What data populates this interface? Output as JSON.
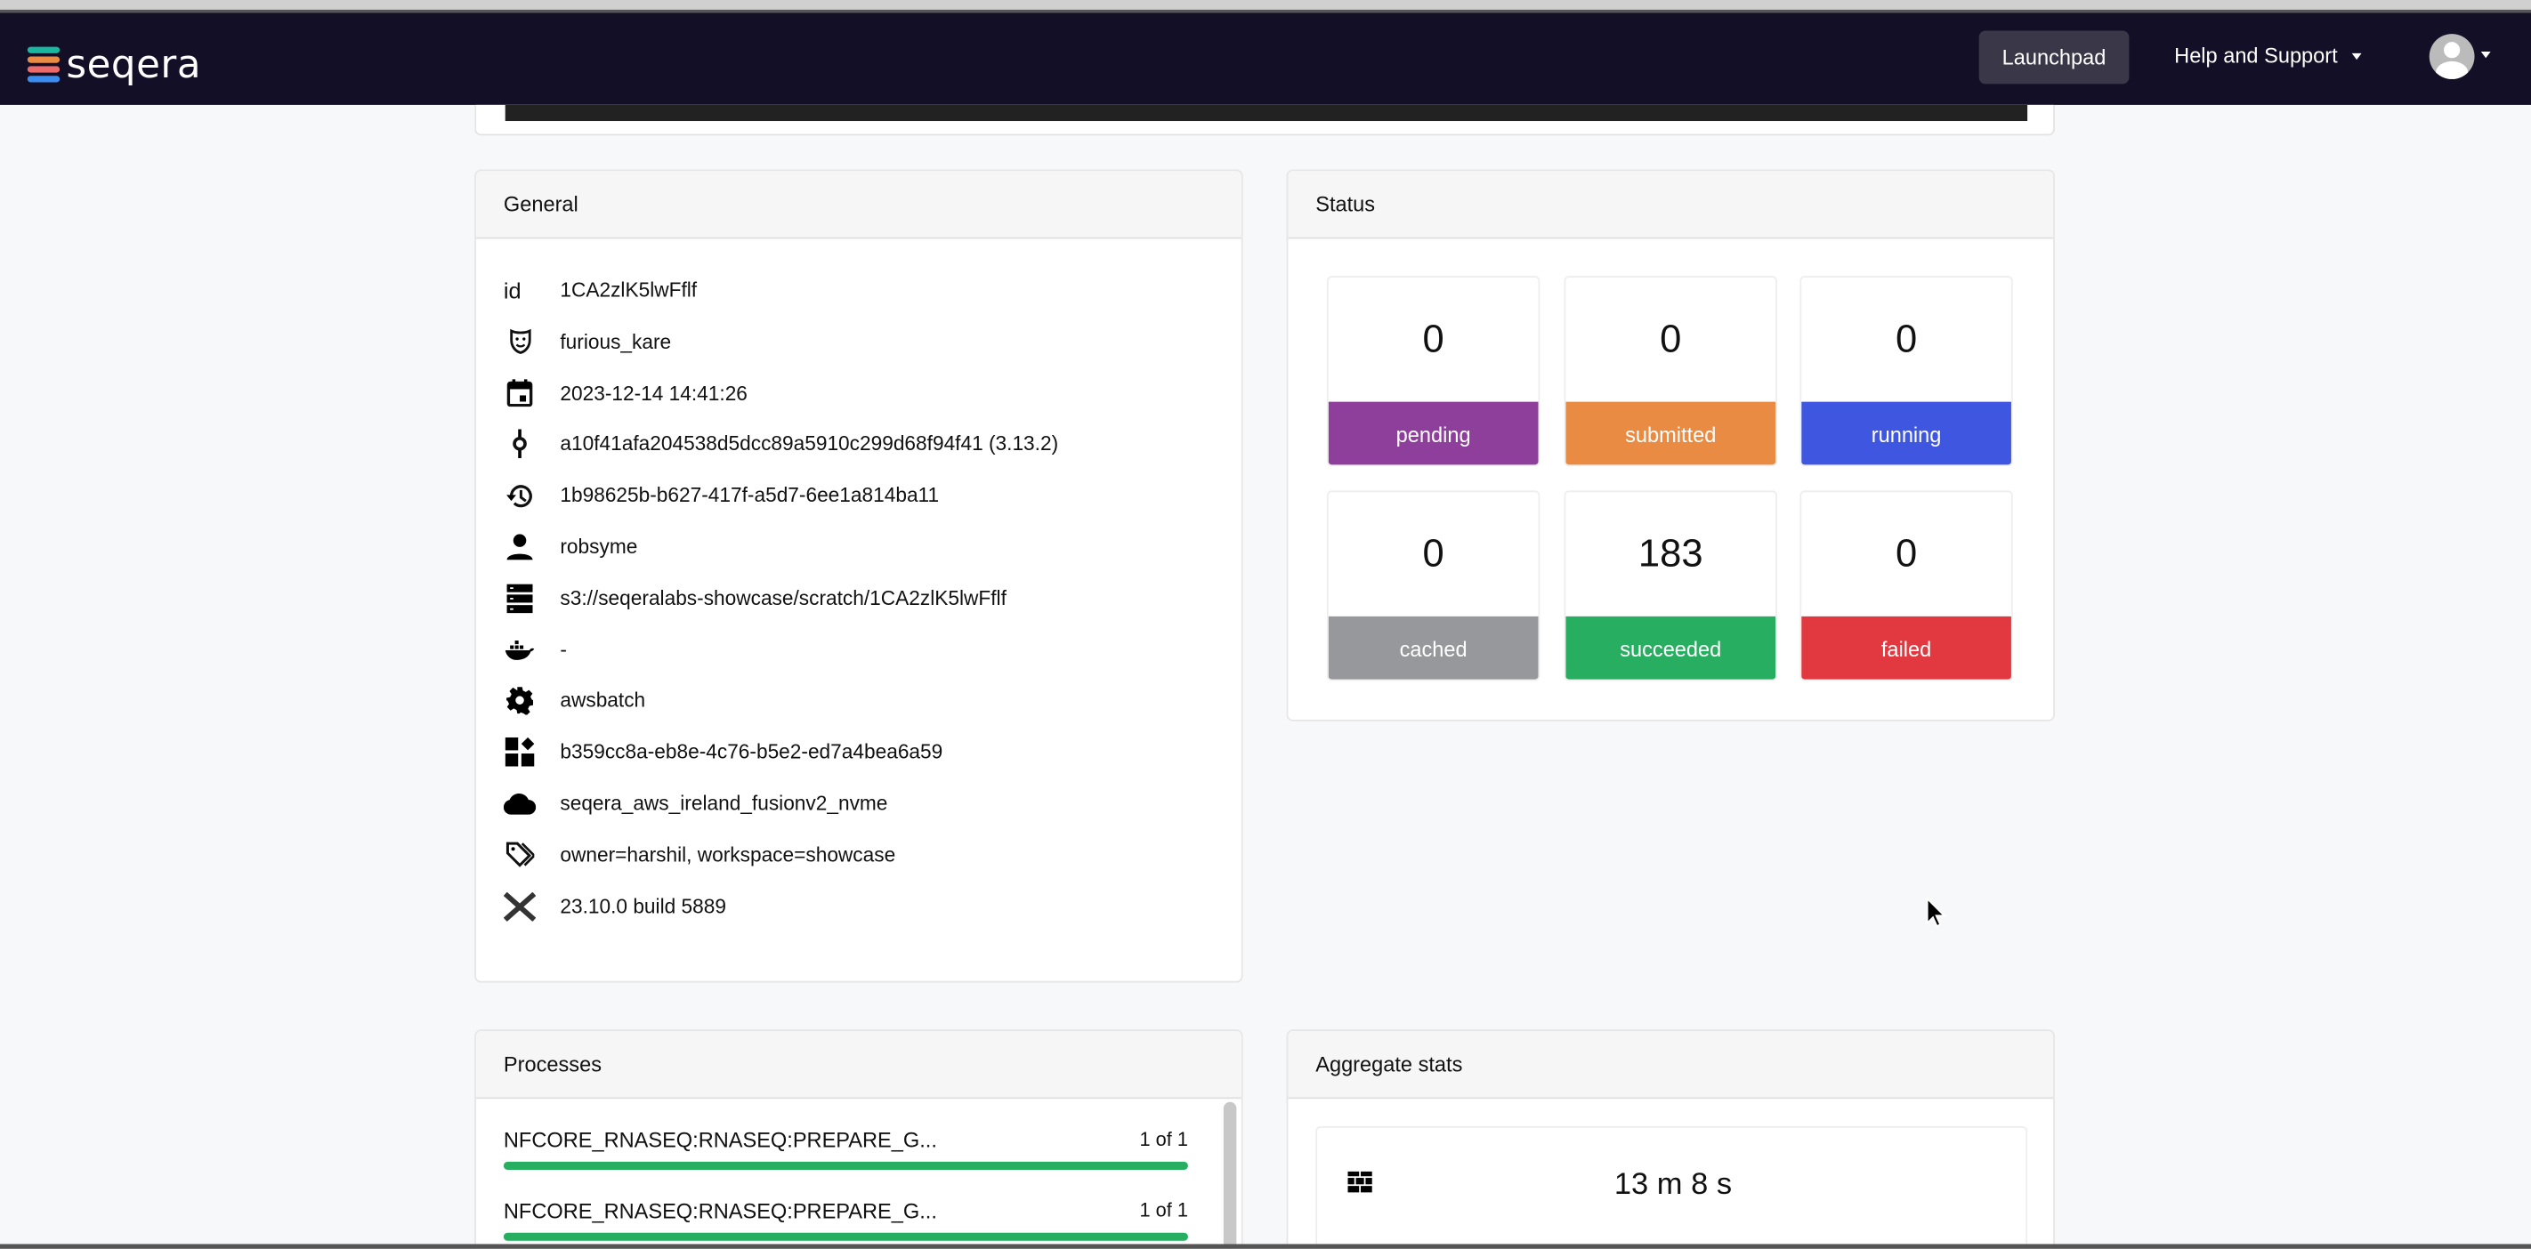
{
  "nav": {
    "brand": "seqera",
    "launchpad": "Launchpad",
    "help": "Help and Support"
  },
  "general": {
    "title": "General",
    "rows": [
      {
        "icon": "id",
        "value": "1CA2zlK5lwFflf"
      },
      {
        "icon": "mask-icon",
        "value": "furious_kare"
      },
      {
        "icon": "calendar-icon",
        "value": "2023-12-14 14:41:26"
      },
      {
        "icon": "commit-icon",
        "value": "a10f41afa204538d5dcc89a5910c299d68f94f41 (3.13.2)"
      },
      {
        "icon": "history-icon",
        "value": "1b98625b-b627-417f-a5d7-6ee1a814ba11"
      },
      {
        "icon": "user-icon",
        "value": "robsyme"
      },
      {
        "icon": "storage-icon",
        "value": "s3://seqeralabs-showcase/scratch/1CA2zlK5lwFflf"
      },
      {
        "icon": "docker-icon",
        "value": "-"
      },
      {
        "icon": "gear-icon",
        "value": "awsbatch"
      },
      {
        "icon": "widgets-icon",
        "value": "b359cc8a-eb8e-4c76-b5e2-ed7a4bea6a59"
      },
      {
        "icon": "cloud-icon",
        "value": "seqera_aws_ireland_fusionv2_nvme"
      },
      {
        "icon": "tags-icon",
        "value": "owner=harshil, workspace=showcase"
      },
      {
        "icon": "nextflow-icon",
        "value": "23.10.0 build 5889"
      }
    ]
  },
  "status": {
    "title": "Status",
    "tiles": [
      {
        "count": "0",
        "label": "pending",
        "color": "#8e3f9c"
      },
      {
        "count": "0",
        "label": "submitted",
        "color": "#e98b42"
      },
      {
        "count": "0",
        "label": "running",
        "color": "#3f57e0"
      },
      {
        "count": "0",
        "label": "cached",
        "color": "#96989b"
      },
      {
        "count": "183",
        "label": "succeeded",
        "color": "#27ae60"
      },
      {
        "count": "0",
        "label": "failed",
        "color": "#e2383f"
      }
    ]
  },
  "processes": {
    "title": "Processes",
    "items": [
      {
        "name": "NFCORE_RNASEQ:RNASEQ:PREPARE_G...",
        "count": "1 of 1",
        "progress": 1.0
      },
      {
        "name": "NFCORE_RNASEQ:RNASEQ:PREPARE_G...",
        "count": "1 of 1",
        "progress": 1.0
      }
    ]
  },
  "aggregate": {
    "title": "Aggregate stats",
    "wall_time": "13 m 8 s"
  }
}
